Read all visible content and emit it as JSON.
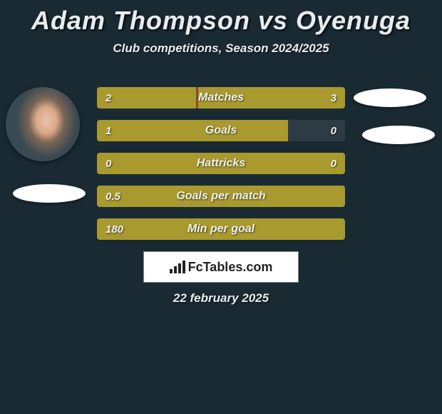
{
  "title": "Adam Thompson vs Oyenuga",
  "subtitle": "Club competitions, Season 2024/2025",
  "date": "22 february 2025",
  "logo_text": "FcTables.com",
  "colors": {
    "bar_olive": "#a89a2e",
    "bar_dark": "#2c3b44",
    "divider": "#8c4a2a"
  },
  "bars": [
    {
      "label": "Matches",
      "left_val": "2",
      "right_val": "3",
      "left_pct": 40,
      "right_pct": 60,
      "left_color": "#a89a2e",
      "right_color": "#a89a2e",
      "divider": true
    },
    {
      "label": "Goals",
      "left_val": "1",
      "right_val": "0",
      "left_pct": 77,
      "right_pct": 23,
      "left_color": "#a89a2e",
      "right_color": "#2c3b44",
      "divider": false
    },
    {
      "label": "Hattricks",
      "left_val": "0",
      "right_val": "0",
      "left_pct": 100,
      "right_pct": 0,
      "left_color": "#a89a2e",
      "right_color": "#a89a2e",
      "divider": false
    },
    {
      "label": "Goals per match",
      "left_val": "0.5",
      "right_val": "",
      "left_pct": 100,
      "right_pct": 0,
      "left_color": "#a89a2e",
      "right_color": "#a89a2e",
      "divider": false
    },
    {
      "label": "Min per goal",
      "left_val": "180",
      "right_val": "",
      "left_pct": 100,
      "right_pct": 0,
      "left_color": "#a89a2e",
      "right_color": "#a89a2e",
      "divider": false
    }
  ]
}
